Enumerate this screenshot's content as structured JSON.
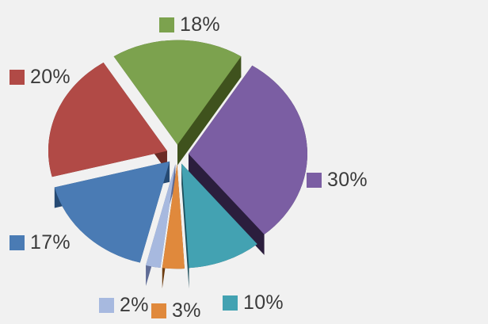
{
  "background_color": "#f1f1f1",
  "chart_data": {
    "type": "pie",
    "style": "3d-exploded",
    "title": "",
    "direction": "clockwise",
    "start_angle_deg": 122.4,
    "total": 100,
    "grid": false,
    "legend_position": "scattered-around-slices",
    "label_color": "#3b3b3b",
    "slices": [
      {
        "label": "18%",
        "value": 18,
        "color": "#7CA24E",
        "side_color": "#3F521D"
      },
      {
        "label": "30%",
        "value": 30,
        "color": "#7B5EA3",
        "side_color": "#2B1E3D"
      },
      {
        "label": "10%",
        "value": 10,
        "color": "#43A2B2",
        "side_color": "#1D4F5C"
      },
      {
        "label": "3%",
        "value": 3,
        "color": "#E0893C",
        "side_color": "#6E3E12"
      },
      {
        "label": "2%",
        "value": 2,
        "color": "#A7B9DF",
        "side_color": "#5F6C96"
      },
      {
        "label": "17%",
        "value": 17,
        "color": "#4A7BB4",
        "side_color": "#264A73"
      },
      {
        "label": "20%",
        "value": 20,
        "color": "#B14A46",
        "side_color": "#6B2B25"
      }
    ]
  }
}
